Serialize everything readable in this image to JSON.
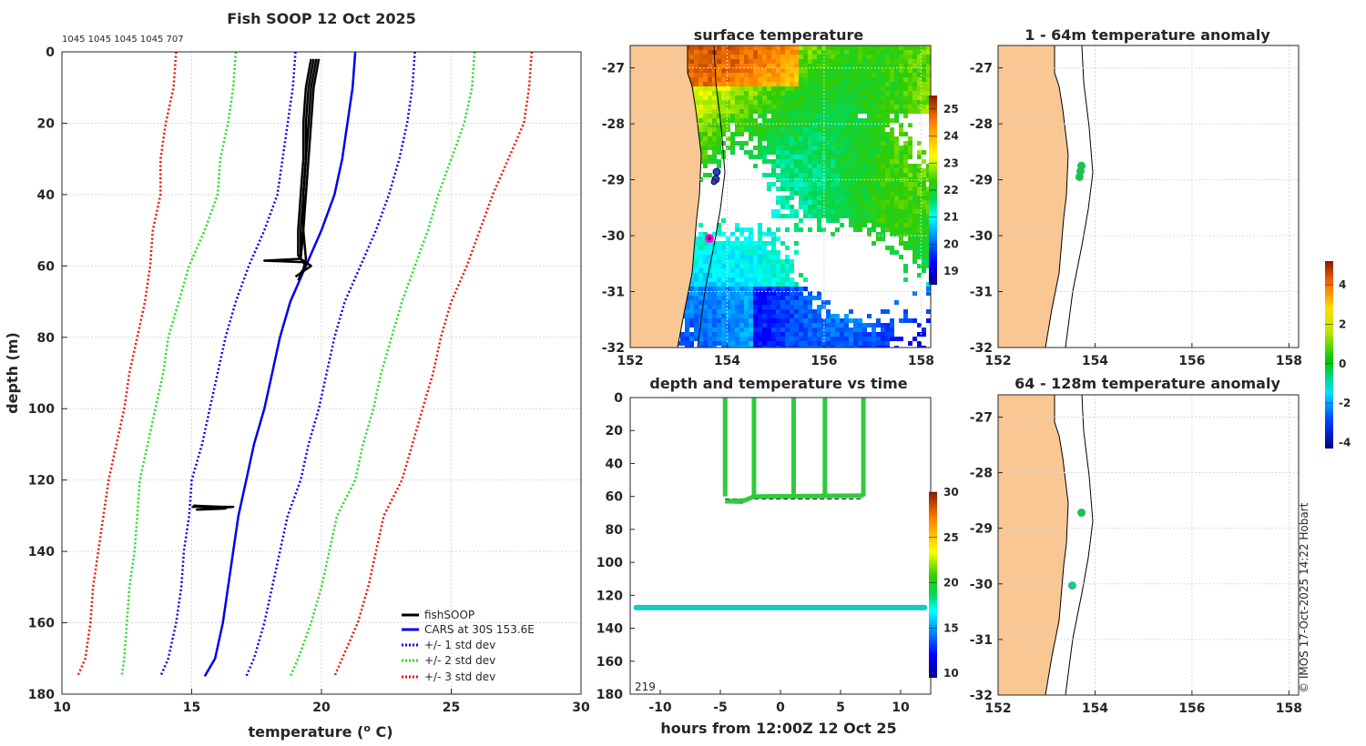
{
  "chart_data": [
    {
      "id": "profile",
      "type": "line",
      "title": "Fish SOOP 12 Oct 2025",
      "top_note": "1045 1045 1045 1045 707",
      "xlabel": "temperature (",
      "xlabel_sup": "o",
      "xlabel_end": " C)",
      "ylabel": "depth (m)",
      "xlim": [
        10,
        30
      ],
      "ylim": [
        0,
        180
      ],
      "xticks": [
        10,
        15,
        20,
        25,
        30
      ],
      "yticks": [
        0,
        20,
        40,
        60,
        80,
        100,
        120,
        140,
        160,
        180
      ],
      "legend": [
        "fishSOOP",
        "CARS at 30S 153.6E",
        "+/- 1 std dev",
        "+/- 2 std dev",
        "+/- 3 std dev"
      ],
      "depths": [
        0,
        10,
        20,
        30,
        40,
        50,
        60,
        70,
        80,
        90,
        100,
        110,
        120,
        130,
        140,
        150,
        160,
        170,
        175
      ],
      "series": [
        {
          "name": "CARS at 30S 153.6E",
          "color": "#0000ee",
          "dotted": false,
          "values": [
            21.3,
            21.2,
            21.0,
            20.8,
            20.5,
            20.0,
            19.4,
            18.8,
            18.4,
            18.1,
            17.8,
            17.4,
            17.1,
            16.8,
            16.6,
            16.4,
            16.2,
            15.9,
            15.5
          ]
        },
        {
          "name": "+1 std dev",
          "color": "#0000ee",
          "dotted": true,
          "values": [
            23.6,
            23.5,
            23.3,
            23.0,
            22.6,
            22.1,
            21.5,
            20.9,
            20.5,
            20.2,
            19.9,
            19.5,
            19.2,
            18.7,
            18.4,
            18.1,
            17.8,
            17.4,
            17.1
          ]
        },
        {
          "name": "-1 std dev",
          "color": "#0000ee",
          "dotted": true,
          "values": [
            19.0,
            18.9,
            18.7,
            18.5,
            18.3,
            17.8,
            17.2,
            16.7,
            16.3,
            16.0,
            15.7,
            15.4,
            15.0,
            14.9,
            14.7,
            14.6,
            14.4,
            14.1,
            13.8
          ]
        },
        {
          "name": "+2 std dev",
          "color": "#22dd22",
          "dotted": true,
          "values": [
            25.9,
            25.8,
            25.5,
            25.0,
            24.5,
            24.1,
            23.6,
            23.1,
            22.7,
            22.3,
            22.0,
            21.6,
            21.3,
            20.6,
            20.3,
            20.0,
            19.6,
            19.1,
            18.8
          ]
        },
        {
          "name": "-2 std dev",
          "color": "#22dd22",
          "dotted": true,
          "values": [
            16.7,
            16.6,
            16.4,
            16.1,
            16.0,
            15.5,
            14.9,
            14.5,
            14.1,
            13.9,
            13.6,
            13.3,
            13.0,
            12.9,
            12.8,
            12.6,
            12.5,
            12.4,
            12.3
          ]
        },
        {
          "name": "+3 std dev",
          "color": "#ee1100",
          "dotted": true,
          "values": [
            28.1,
            28.0,
            27.8,
            27.2,
            26.6,
            26.1,
            25.6,
            25.0,
            24.6,
            24.3,
            23.9,
            23.5,
            23.1,
            22.4,
            22.1,
            21.8,
            21.4,
            20.8,
            20.5
          ]
        },
        {
          "name": "-3 std dev",
          "color": "#ee1100",
          "dotted": true,
          "values": [
            14.4,
            14.3,
            14.0,
            13.8,
            13.8,
            13.5,
            13.4,
            13.2,
            12.9,
            12.6,
            12.4,
            12.1,
            11.8,
            11.6,
            11.4,
            11.2,
            11.1,
            10.9,
            10.6
          ]
        }
      ],
      "fishsoop": [
        {
          "name": "fishSOOP cast 1",
          "points": [
            [
              19.6,
              2
            ],
            [
              19.4,
              10
            ],
            [
              19.3,
              20
            ],
            [
              19.3,
              30
            ],
            [
              19.2,
              40
            ],
            [
              19.1,
              50
            ],
            [
              19.1,
              57
            ],
            [
              19.4,
              60
            ],
            [
              19.2,
              62
            ]
          ]
        },
        {
          "name": "fishSOOP cast 2",
          "points": [
            [
              19.8,
              2
            ],
            [
              19.6,
              10
            ],
            [
              19.5,
              20
            ],
            [
              19.4,
              30
            ],
            [
              19.3,
              40
            ],
            [
              19.3,
              50
            ],
            [
              19.2,
              58
            ],
            [
              19.6,
              60
            ],
            [
              19.0,
              63
            ]
          ]
        },
        {
          "name": "fishSOOP cast 3",
          "points": [
            [
              19.7,
              2
            ],
            [
              19.5,
              10
            ],
            [
              19.4,
              20
            ],
            [
              19.4,
              30
            ],
            [
              19.3,
              40
            ],
            [
              19.2,
              50
            ],
            [
              19.2,
              58
            ],
            [
              17.8,
              58.5
            ],
            [
              19.5,
              59
            ]
          ]
        },
        {
          "name": "fishSOOP cast 4",
          "points": [
            [
              19.9,
              2
            ],
            [
              19.7,
              10
            ],
            [
              19.6,
              20
            ],
            [
              19.5,
              30
            ],
            [
              19.4,
              40
            ],
            [
              19.3,
              50
            ],
            [
              19.4,
              58
            ],
            [
              19.3,
              61
            ],
            [
              19.1,
              64
            ]
          ]
        },
        {
          "name": "fishSOOP cast 5",
          "points": [
            [
              15.0,
              127.5
            ],
            [
              16.6,
              127.5
            ],
            [
              15.2,
              128.3
            ],
            [
              16.3,
              128.0
            ],
            [
              15.1,
              127.2
            ],
            [
              16.5,
              127.6
            ]
          ]
        }
      ]
    },
    {
      "id": "sst",
      "type": "heatmap",
      "title": "surface temperature",
      "xlim": [
        152,
        158.2
      ],
      "ylim": [
        -32,
        -26.6
      ],
      "xticks": [
        152,
        154,
        156,
        158
      ],
      "yticks": [
        -27,
        -28,
        -29,
        -30,
        -31,
        -32
      ],
      "colorbar": {
        "range": [
          18.5,
          25.5
        ],
        "ticks": [
          19,
          20,
          21,
          22,
          23,
          24,
          25
        ]
      }
    },
    {
      "id": "depthtime",
      "type": "scatter",
      "title": "depth and temperature vs time",
      "xlabel": "hours from 12:00Z 12 Oct 25",
      "xlim": [
        -12.5,
        12.5
      ],
      "ylim": [
        0,
        180
      ],
      "xticks": [
        -10,
        -5,
        0,
        5,
        10
      ],
      "yticks": [
        0,
        20,
        40,
        60,
        80,
        100,
        120,
        140,
        160,
        180
      ],
      "corner_label": "219",
      "dive_times": [
        -4.6,
        -2.2,
        1.1,
        3.7,
        6.9
      ],
      "dive_start": -4.6,
      "dive_end": 6.9,
      "deep_track": {
        "start": -12,
        "end": 12,
        "depth": 127.5
      },
      "colorbar": {
        "range": [
          9.5,
          30
        ],
        "ticks": [
          10,
          15,
          20,
          25,
          30
        ]
      }
    },
    {
      "id": "anom1",
      "type": "scatter",
      "title": "1 - 64m temperature anomaly",
      "xlim": [
        152,
        158.2
      ],
      "ylim": [
        -32,
        -26.6
      ],
      "xticks": [
        152,
        154,
        156,
        158
      ],
      "yticks": [
        -27,
        -28,
        -29,
        -30,
        -31,
        -32
      ],
      "points": [
        [
          153.72,
          -28.75
        ],
        [
          153.7,
          -28.85
        ],
        [
          153.68,
          -28.95
        ]
      ]
    },
    {
      "id": "anom2",
      "type": "scatter",
      "title": "64 - 128m temperature anomaly",
      "xlim": [
        152,
        158.2
      ],
      "ylim": [
        -32,
        -26.6
      ],
      "xticks": [
        152,
        154,
        156,
        158
      ],
      "yticks": [
        -27,
        -28,
        -29,
        -30,
        -31,
        -32
      ],
      "points": [
        [
          153.72,
          -28.72
        ],
        [
          153.53,
          -30.03
        ]
      ],
      "colorbar": {
        "range": [
          -4.3,
          5.2
        ],
        "ticks": [
          4,
          2,
          0,
          -2,
          -4
        ]
      }
    }
  ],
  "credit": "© IMOS 17-Oct-2025 14:22 Hobart",
  "colors": {
    "land": "#f9c793",
    "fishsoop": "#000000",
    "marker": "#ff00ff",
    "accent": "#0000ee"
  }
}
